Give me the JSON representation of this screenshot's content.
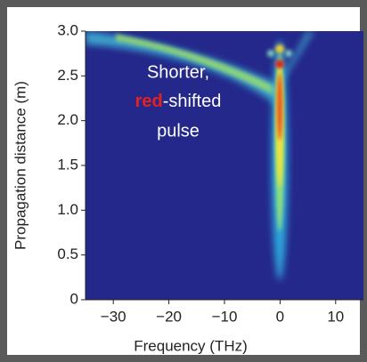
{
  "chart_data": {
    "type": "heatmap",
    "x_label": "Frequency (THz)",
    "y_label": "Propagation distance (m)",
    "annotation": [
      "Shorter,",
      "red",
      "-shifted",
      "pulse"
    ],
    "annotation_highlight_color": "#e8201c",
    "xlim": [
      -35,
      15
    ],
    "xticks": [
      {
        "value": -30,
        "label": "−30"
      },
      {
        "value": -20,
        "label": "−20"
      },
      {
        "value": -10,
        "label": "−10"
      },
      0,
      10
    ],
    "ylim": [
      0,
      3
    ],
    "yticks": [
      0,
      0.5,
      {
        "value": 1,
        "label": "1.0"
      },
      1.5,
      {
        "value": 2,
        "label": "2.0"
      },
      2.5,
      {
        "value": 3,
        "label": "3.0"
      }
    ],
    "background_color": "#24288a"
  }
}
